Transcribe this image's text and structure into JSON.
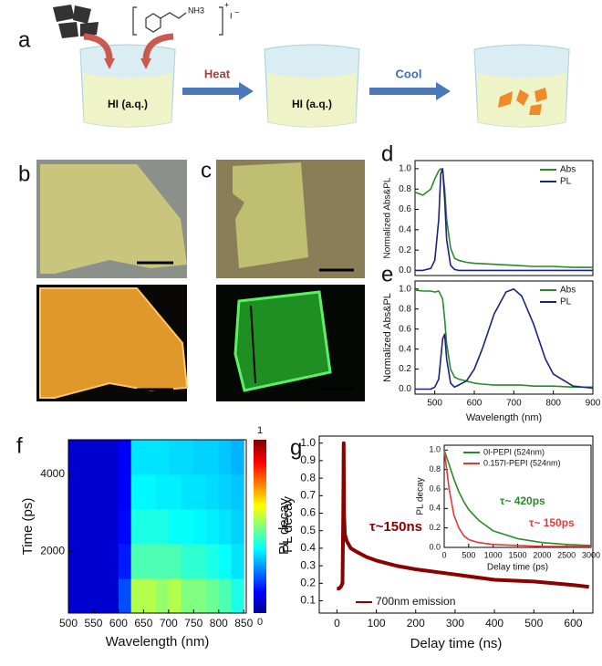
{
  "schematic": {
    "label": "a",
    "beaker_labels": [
      "HI (a.q.)",
      "HI (a.q.)"
    ],
    "steps": [
      "Heat",
      "Cool"
    ],
    "formula": {
      "group": "NH3",
      "charge": "+",
      "counter": "I",
      "counter_charge": "−"
    }
  },
  "photos": [
    {
      "label": "b"
    },
    {
      "label": "c"
    }
  ],
  "chart_data": [
    {
      "type": "line",
      "label": "d",
      "ylabel": "Normalized Abs&PL",
      "x": [
        450,
        470,
        490,
        500,
        510,
        515,
        520,
        525,
        530,
        540,
        550,
        560,
        580,
        600,
        650,
        700,
        750,
        800,
        850,
        900
      ],
      "series": [
        {
          "name": "Abs",
          "color": "#2a8a2a",
          "values": [
            0.77,
            0.74,
            0.8,
            0.9,
            0.98,
            1.0,
            0.98,
            0.8,
            0.5,
            0.22,
            0.12,
            0.1,
            0.08,
            0.07,
            0.06,
            0.05,
            0.04,
            0.04,
            0.03,
            0.03
          ]
        },
        {
          "name": "PL",
          "color": "#1a237e",
          "values": [
            0,
            0,
            0.02,
            0.1,
            0.5,
            0.95,
            1.0,
            0.7,
            0.3,
            0.05,
            0.01,
            0,
            0,
            0,
            0,
            0,
            0,
            0,
            0,
            0
          ]
        }
      ],
      "xlim": [
        450,
        900
      ],
      "ylim": [
        -0.05,
        1.08
      ],
      "yticks": [
        {
          "value": 0,
          "label": "0.0"
        },
        0.2,
        0.4,
        0.6,
        0.8,
        {
          "value": 1,
          "label": "1.0"
        }
      ]
    },
    {
      "type": "line",
      "label": "e",
      "ylabel": "Normalized Abs&PL",
      "xlabel": "Wavelength (nm)",
      "x": [
        450,
        470,
        490,
        500,
        510,
        520,
        525,
        530,
        540,
        550,
        560,
        580,
        600,
        620,
        650,
        680,
        700,
        720,
        750,
        780,
        800,
        850,
        900
      ],
      "series": [
        {
          "name": "Abs",
          "color": "#2a8a2a",
          "values": [
            0.99,
            0.98,
            0.98,
            0.97,
            0.98,
            0.9,
            0.7,
            0.45,
            0.2,
            0.12,
            0.1,
            0.08,
            0.06,
            0.05,
            0.04,
            0.04,
            0.04,
            0.04,
            0.03,
            0.03,
            0.03,
            0.02,
            0.02
          ]
        },
        {
          "name": "PL",
          "color": "#1a237e",
          "values": [
            0,
            0,
            0,
            0.02,
            0.1,
            0.5,
            0.55,
            0.3,
            0.06,
            0.02,
            0.04,
            0.08,
            0.2,
            0.4,
            0.75,
            0.97,
            1.0,
            0.93,
            0.65,
            0.3,
            0.15,
            0.03,
            0.01
          ]
        }
      ],
      "xlim": [
        450,
        900
      ],
      "ylim": [
        -0.05,
        1.08
      ],
      "xticks": [
        500,
        600,
        700,
        800,
        900
      ],
      "yticks": [
        {
          "value": 0,
          "label": "0.0"
        },
        0.2,
        0.4,
        0.6,
        0.8,
        {
          "value": 1,
          "label": "1.0"
        }
      ]
    },
    {
      "type": "heatmap",
      "label": "f",
      "xlabel": "Wavelength (nm)",
      "ylabel": "Time (ps)",
      "x_bins": [
        500,
        525,
        550,
        575,
        600,
        625,
        650,
        675,
        700,
        725,
        750,
        775,
        800,
        825,
        850
      ],
      "y_bins": [
        400,
        1300,
        2200,
        3100,
        4000,
        4900
      ],
      "z": [
        [
          0.08,
          0.08,
          0.08,
          0.08,
          0.2,
          0.55,
          0.55,
          0.52,
          0.55,
          0.5,
          0.5,
          0.48,
          0.45,
          0.4
        ],
        [
          0.08,
          0.08,
          0.08,
          0.08,
          0.15,
          0.45,
          0.45,
          0.45,
          0.45,
          0.42,
          0.42,
          0.4,
          0.38,
          0.35
        ],
        [
          0.08,
          0.08,
          0.08,
          0.08,
          0.13,
          0.4,
          0.4,
          0.4,
          0.38,
          0.38,
          0.37,
          0.36,
          0.35,
          0.33
        ],
        [
          0.08,
          0.08,
          0.08,
          0.08,
          0.12,
          0.37,
          0.37,
          0.36,
          0.36,
          0.35,
          0.35,
          0.34,
          0.33,
          0.32
        ],
        [
          0.08,
          0.08,
          0.08,
          0.08,
          0.12,
          0.35,
          0.35,
          0.35,
          0.34,
          0.34,
          0.33,
          0.33,
          0.32,
          0.3
        ]
      ],
      "xlim": [
        500,
        855
      ],
      "ylim": [
        400,
        4900
      ],
      "xticks": [
        500,
        550,
        600,
        650,
        700,
        750,
        800,
        850
      ],
      "yticks": [
        2000,
        4000
      ],
      "colorbar_label": "PL decay",
      "colorbar_ticks": [
        0,
        1
      ]
    },
    {
      "type": "line",
      "label": "g",
      "xlabel": "Delay time (ns)",
      "ylabel": "PL decay",
      "x": [
        0,
        5,
        10,
        14,
        16,
        17,
        18,
        20,
        25,
        35,
        50,
        75,
        100,
        150,
        200,
        300,
        400,
        500,
        600,
        640
      ],
      "series": [
        {
          "name": "700nm emission",
          "color": "#8b0000",
          "values": [
            0.17,
            0.17,
            0.18,
            0.2,
            0.6,
            1.0,
            0.6,
            0.48,
            0.44,
            0.4,
            0.38,
            0.35,
            0.33,
            0.3,
            0.28,
            0.25,
            0.22,
            0.21,
            0.19,
            0.18
          ]
        }
      ],
      "annotations": [
        {
          "text": "τ~150ns",
          "color": "#8b0000"
        }
      ],
      "xlim": [
        -45,
        650
      ],
      "ylim": [
        0.03,
        1.04
      ],
      "xticks": [
        0,
        100,
        200,
        300,
        400,
        500,
        600
      ],
      "yticks": [
        0.1,
        0.2,
        0.3,
        0.4,
        0.5,
        0.6,
        0.7,
        0.8,
        0.9,
        {
          "value": 1,
          "label": "1.0"
        }
      ]
    },
    {
      "type": "line",
      "xlabel": "Delay time (ps)",
      "ylabel": "PL decay",
      "x": [
        0,
        100,
        200,
        300,
        400,
        500,
        700,
        1000,
        1500,
        2000,
        2500,
        3000
      ],
      "series": [
        {
          "name": "0I-PEPI (524nm)",
          "color": "#2a8a2a",
          "values": [
            1.0,
            0.85,
            0.7,
            0.57,
            0.47,
            0.39,
            0.28,
            0.17,
            0.09,
            0.05,
            0.03,
            0.02
          ]
        },
        {
          "name": "0.157I-PEPI (524nm)",
          "color": "#e53935",
          "values": [
            1.0,
            0.6,
            0.33,
            0.2,
            0.12,
            0.08,
            0.05,
            0.03,
            0.02,
            0.01,
            0.01,
            0.01
          ]
        }
      ],
      "annotations": [
        {
          "text": "τ~ 420ps",
          "color": "#2a8a2a"
        },
        {
          "text": "τ~ 150ps",
          "color": "#e53935"
        }
      ],
      "xlim": [
        0,
        3000
      ],
      "ylim": [
        0,
        1.05
      ],
      "xticks": [
        0,
        500,
        1000,
        1500,
        2000,
        2500,
        3000
      ],
      "yticks": [
        {
          "value": 0,
          "label": "0.0"
        },
        0.2,
        0.4,
        0.6,
        0.8,
        {
          "value": 1,
          "label": "1.0"
        }
      ]
    }
  ]
}
